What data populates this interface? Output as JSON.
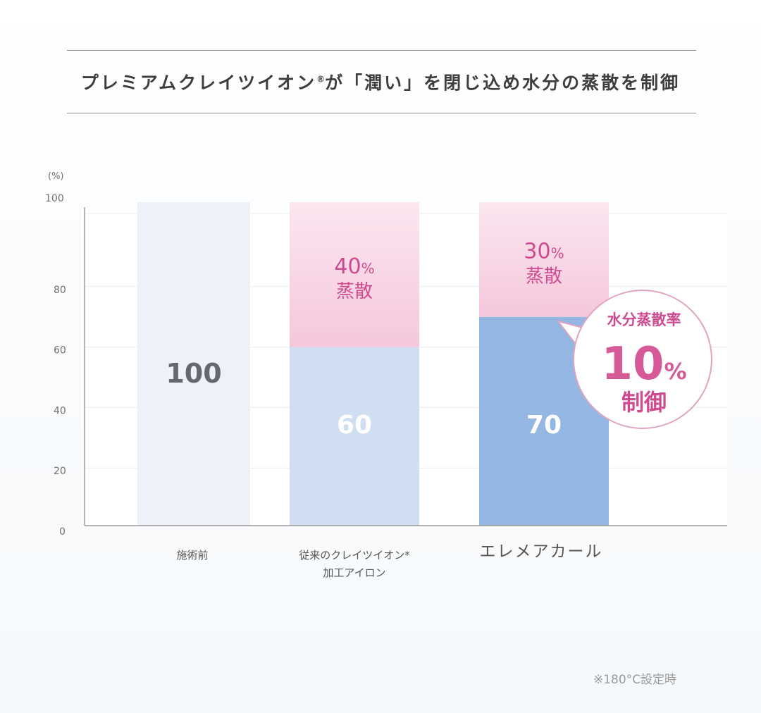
{
  "header": {
    "title_main": "プレミアムクレイツイオン",
    "title_mark": "®",
    "title_rest": "が「潤い」を閉じ込め水分の蒸散を制御"
  },
  "chart_data": {
    "type": "bar",
    "title": "プレミアムクレイツイオン®が「潤い」を閉じ込め水分の蒸散を制御",
    "ylabel": "(%)",
    "ylim": [
      0,
      100
    ],
    "yticks": [
      "0",
      "20",
      "40",
      "60",
      "80",
      "100"
    ],
    "categories": [
      {
        "line1": "施術前",
        "line2": ""
      },
      {
        "line1": "従来のクレイツイオン*",
        "line2": "加工アイロン"
      },
      {
        "line1": "エレメアカール",
        "line2": ""
      }
    ],
    "series": [
      {
        "values": [
          100,
          60,
          70
        ],
        "labels": [
          "100",
          "60",
          "70"
        ],
        "colors": [
          "#eef1f8",
          "#cfdff1",
          "#93b7e2"
        ]
      },
      {
        "values": [
          0,
          40,
          30
        ],
        "pct_labels": [
          "",
          "40",
          "30"
        ],
        "pct_sign": "%",
        "sub_labels": [
          "",
          "蒸散",
          "蒸散"
        ],
        "color": "#f7d3e4"
      }
    ],
    "callout": {
      "line1": "水分蒸散率",
      "big": "10",
      "pct": "%",
      "line3": "制御"
    },
    "grid": true
  },
  "footer": {
    "note": "※180°C設定時"
  },
  "colors": {
    "accent_pink": "#cf4a8f",
    "axis": "#9a9a9a",
    "grid": "#ececf0"
  }
}
